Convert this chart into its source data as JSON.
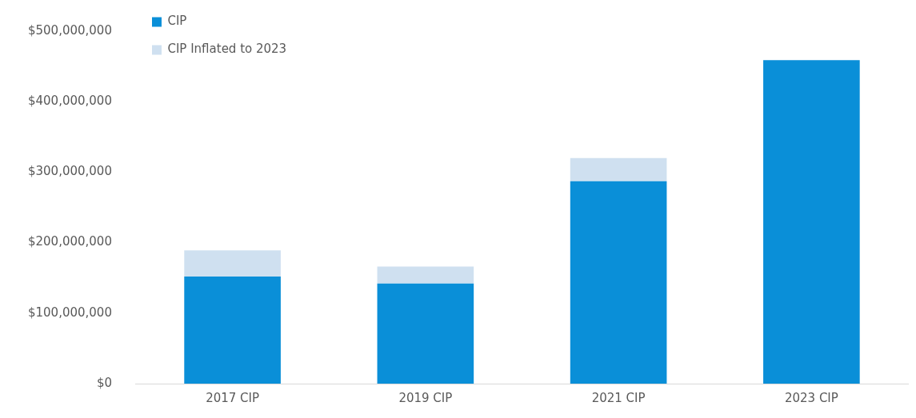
{
  "chart_data": {
    "type": "bar",
    "stacked": true,
    "categories": [
      "2017 CIP",
      "2019 CIP",
      "2021 CIP",
      "2023 CIP"
    ],
    "series": [
      {
        "name": "CIP",
        "color": "#0a8fd8",
        "values": [
          152000000,
          142000000,
          287000000,
          459000000
        ]
      },
      {
        "name": "CIP Inflated to 2023",
        "color": "#cfe0f0",
        "values": [
          37000000,
          24000000,
          33000000,
          null
        ]
      }
    ],
    "ylim": [
      0,
      500000000
    ],
    "yticks": [
      {
        "value": 0,
        "label": "$0"
      },
      {
        "value": 100000000,
        "label": "$100,000,000"
      },
      {
        "value": 200000000,
        "label": "$200,000,000"
      },
      {
        "value": 300000000,
        "label": "$300,000,000"
      },
      {
        "value": 400000000,
        "label": "$400,000,000"
      },
      {
        "value": 500000000,
        "label": "$500,000,000"
      }
    ],
    "grid": false,
    "legend": "top left"
  }
}
